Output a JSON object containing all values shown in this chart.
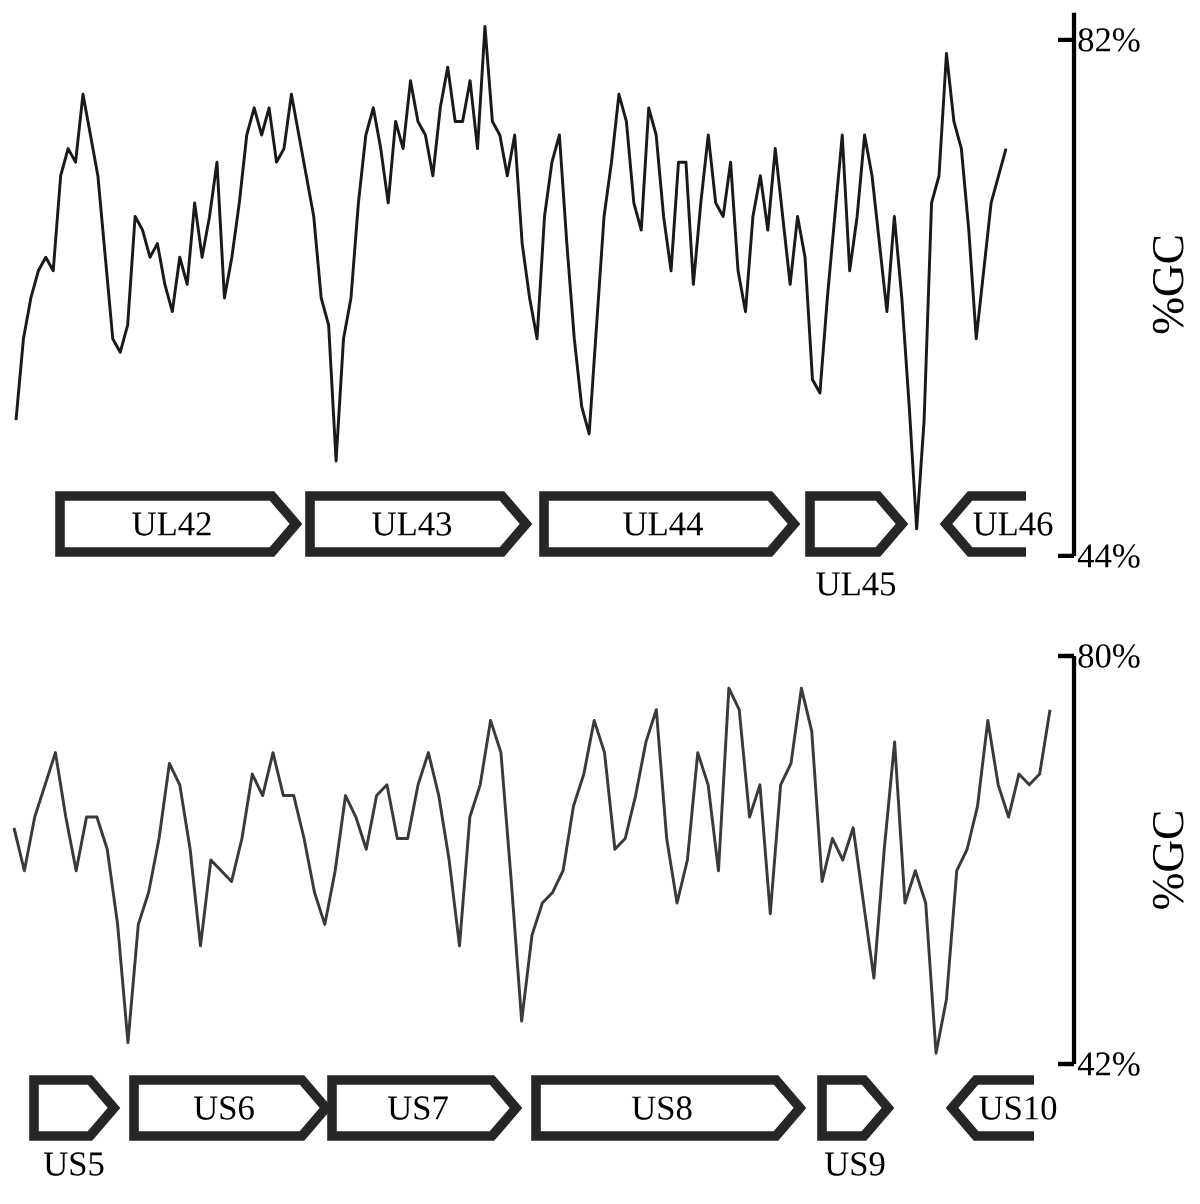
{
  "chart_data": [
    {
      "type": "line",
      "color": "#1a1a1a",
      "ylabel": "%GC",
      "ylim": [
        44,
        84
      ],
      "yticks": [
        {
          "value": 44,
          "label": "44%"
        },
        {
          "value": 82,
          "label": "82%"
        }
      ],
      "tick_labels": "y",
      "annotations": [
        "UL42",
        "UL43",
        "UL44",
        "UL45",
        "UL46"
      ],
      "categories": [
        null,
        null,
        null,
        null,
        null,
        null,
        null,
        null,
        null,
        null,
        null,
        null,
        null,
        null,
        null,
        null,
        null,
        null,
        null,
        null,
        null,
        null,
        null,
        null,
        null,
        null,
        null,
        null,
        null,
        null,
        null,
        null,
        null,
        null,
        null,
        null,
        null,
        null,
        null,
        null,
        null,
        null,
        null,
        null,
        null,
        null,
        null,
        null,
        null,
        null,
        null,
        null,
        null,
        null,
        null,
        null,
        null,
        null,
        null,
        null,
        null,
        null,
        null,
        null,
        null,
        null,
        null,
        null,
        null,
        null,
        null,
        null,
        null,
        null,
        null,
        null,
        null,
        null,
        null,
        null,
        null,
        null,
        null,
        null,
        null,
        null,
        null,
        null,
        null,
        null,
        null,
        null,
        null,
        null,
        null,
        null,
        null,
        null,
        null,
        null,
        null,
        null,
        null,
        null,
        null,
        null,
        null,
        null,
        null,
        null,
        null,
        null,
        null,
        null,
        null,
        null,
        null,
        null,
        null,
        null,
        null,
        null,
        null,
        null,
        null,
        null,
        null,
        null,
        null,
        null,
        null,
        null,
        null,
        null
      ],
      "values": [
        54,
        60,
        63,
        65,
        66,
        65,
        72,
        74,
        73,
        78,
        75,
        72,
        66,
        60,
        59,
        61,
        69,
        68,
        66,
        67,
        64,
        62,
        66,
        64,
        70,
        66,
        69,
        73,
        63,
        66,
        70,
        75,
        77,
        75,
        77,
        73,
        74,
        78,
        75,
        72,
        69,
        63,
        61,
        51,
        60,
        63,
        70,
        75,
        77,
        74,
        70,
        76,
        74,
        79,
        76,
        75,
        72,
        77,
        80,
        76,
        76,
        79,
        74,
        83,
        76,
        75,
        72,
        75,
        67,
        63,
        60,
        69,
        73,
        75,
        67,
        60,
        55,
        53,
        61,
        69,
        73,
        78,
        76,
        70,
        68,
        77,
        75,
        69,
        65,
        73,
        73,
        64,
        70,
        75,
        70,
        69,
        73,
        65,
        62,
        69,
        72,
        68,
        74,
        69,
        64,
        69,
        66,
        57,
        56,
        63,
        69,
        75,
        65,
        69,
        75,
        72,
        67,
        62,
        69,
        63,
        55,
        46,
        54,
        70,
        72,
        81,
        76,
        74,
        68,
        60,
        65,
        70,
        72,
        74
      ]
    },
    {
      "type": "line",
      "color": "#3a3a3a",
      "ylabel": "%GC",
      "ylim": [
        42,
        80
      ],
      "yticks": [
        {
          "value": 42,
          "label": "42%"
        },
        {
          "value": 80,
          "label": "80%"
        }
      ],
      "tick_labels": "y",
      "annotations": [
        "US5",
        "US6",
        "US7",
        "US8",
        "US9",
        "US10"
      ],
      "categories": [
        null,
        null,
        null,
        null,
        null,
        null,
        null,
        null,
        null,
        null,
        null,
        null,
        null,
        null,
        null,
        null,
        null,
        null,
        null,
        null,
        null,
        null,
        null,
        null,
        null,
        null,
        null,
        null,
        null,
        null,
        null,
        null,
        null,
        null,
        null,
        null,
        null,
        null,
        null,
        null,
        null,
        null,
        null,
        null,
        null,
        null,
        null,
        null,
        null,
        null,
        null,
        null,
        null,
        null,
        null,
        null,
        null,
        null,
        null,
        null,
        null,
        null,
        null,
        null,
        null,
        null,
        null,
        null,
        null,
        null,
        null,
        null,
        null,
        null,
        null,
        null,
        null,
        null,
        null,
        null,
        null,
        null,
        null,
        null,
        null,
        null,
        null,
        null,
        null,
        null,
        null,
        null,
        null,
        null,
        null,
        null,
        null,
        null,
        null,
        null,
        null
      ],
      "values": [
        64,
        60,
        65,
        68,
        71,
        65,
        60,
        65,
        65,
        62,
        55,
        44,
        55,
        58,
        63,
        70,
        68,
        62,
        53,
        61,
        60,
        59,
        63,
        69,
        67,
        71,
        67,
        67,
        63,
        58,
        55,
        60,
        67,
        65,
        62,
        67,
        68,
        63,
        63,
        68,
        71,
        67,
        61,
        53,
        65,
        68,
        74,
        71,
        59,
        46,
        54,
        57,
        58,
        60,
        66,
        69,
        74,
        71,
        62,
        63,
        67,
        72,
        75,
        63,
        57,
        61,
        71,
        68,
        60,
        77,
        75,
        65,
        68,
        56,
        68,
        70,
        77,
        73,
        59,
        63,
        61,
        64,
        57,
        50,
        62,
        72,
        57,
        60,
        57,
        43,
        48,
        60,
        62,
        66,
        74,
        68,
        65,
        69,
        68,
        69,
        75
      ]
    }
  ]
}
